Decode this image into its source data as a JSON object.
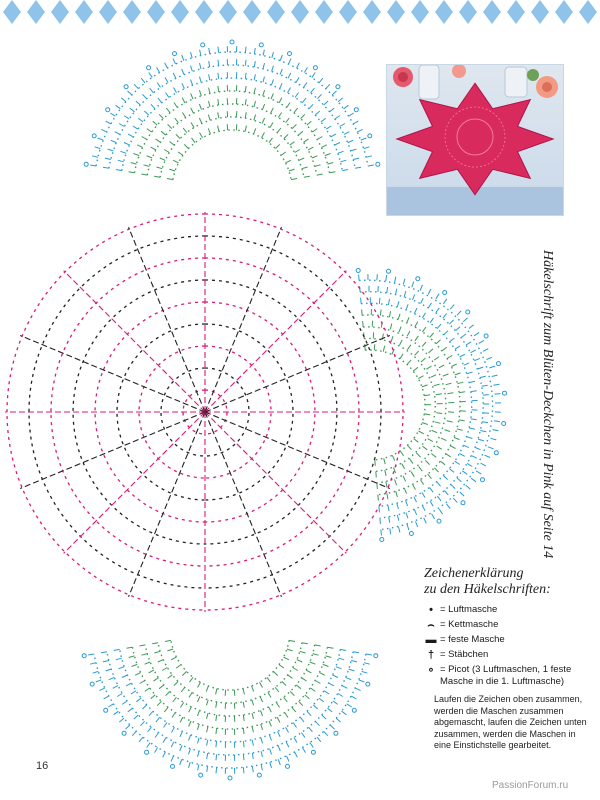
{
  "colors": {
    "border_diamond": "#8fc3ea",
    "chart_pink": "#d81b78",
    "chart_black": "#222222",
    "chart_green": "#3c9a55",
    "chart_blue": "#2a9ad0",
    "doily_pink": "#d92a5d"
  },
  "photo": {
    "subject": "pink star-shaped crocheted doily on table with roses and glass candle holders"
  },
  "side_caption": "Häkelschrift zum Blüten-Deckchen in Pink auf Seite 14",
  "legend": {
    "title_line1": "Zeichenerklärung",
    "title_line2": "zu den Häkelschriften:",
    "items": [
      {
        "symbol": "•",
        "symbol_icon": "dot-icon",
        "label": "= Luftmasche"
      },
      {
        "symbol": "⌢",
        "symbol_icon": "arc-icon",
        "label": "= Kettmasche"
      },
      {
        "symbol": "▬",
        "symbol_icon": "dash-icon",
        "label": "= feste Masche"
      },
      {
        "symbol": "†",
        "symbol_icon": "cross-icon",
        "label": "= Stäbchen"
      },
      {
        "symbol": "∘",
        "symbol_icon": "ring-icon",
        "label": "= Picot (3 Luftmaschen, 1 feste Masche in die 1. Luftmasche)"
      }
    ],
    "note": "Laufen die Zeichen oben zusammen, werden die Maschen zusammen abgemascht, laufen die Zeichen unten zusammen, werden die Maschen in eine Einstichstelle gearbeitet."
  },
  "page_number": "16",
  "watermark": "PassionForum.ru"
}
